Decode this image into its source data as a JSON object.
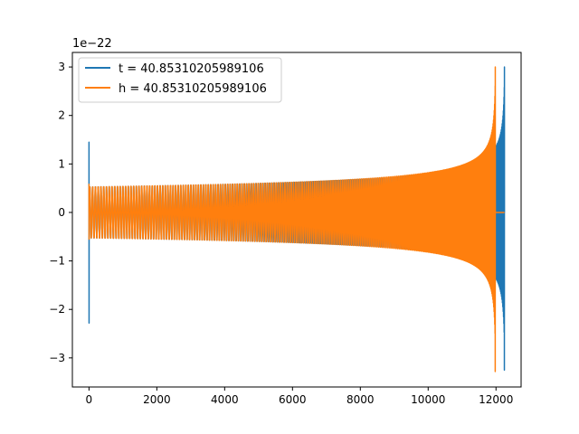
{
  "chart_data": {
    "type": "line",
    "title": "",
    "xlabel": "",
    "ylabel": "",
    "y_offset_label": "1e−22",
    "xlim": [
      -490,
      12740
    ],
    "ylim": [
      -3.6,
      3.3
    ],
    "x_ticks": [
      0,
      2000,
      4000,
      6000,
      8000,
      10000,
      12000
    ],
    "x_tick_labels": [
      "0",
      "2000",
      "4000",
      "6000",
      "8000",
      "10000",
      "12000"
    ],
    "y_ticks": [
      3,
      2,
      1,
      0,
      -1,
      -2,
      -3
    ],
    "y_tick_labels": [
      "3",
      "2",
      "1",
      "0",
      "−1",
      "−2",
      "−3"
    ],
    "grid": false,
    "legend_position": "upper-left",
    "series": [
      {
        "name": "t = 40.85310205989106",
        "color": "#1f77b4",
        "start_x": 0,
        "merger_x": 12250,
        "end_x": 12250,
        "peak": 3.0,
        "trough": -3.25,
        "initial_spike_max": 1.45,
        "initial_spike_min": -2.28,
        "initial_amplitude": 0.55
      },
      {
        "name": "h = 40.85310205989106",
        "color": "#ff7f0e",
        "start_x": 0,
        "merger_x": 11980,
        "end_x": 12250,
        "peak": 3.0,
        "trough": -3.28,
        "initial_spike_max": 0.58,
        "initial_spike_min": -0.55,
        "initial_amplitude": 0.55
      }
    ]
  }
}
